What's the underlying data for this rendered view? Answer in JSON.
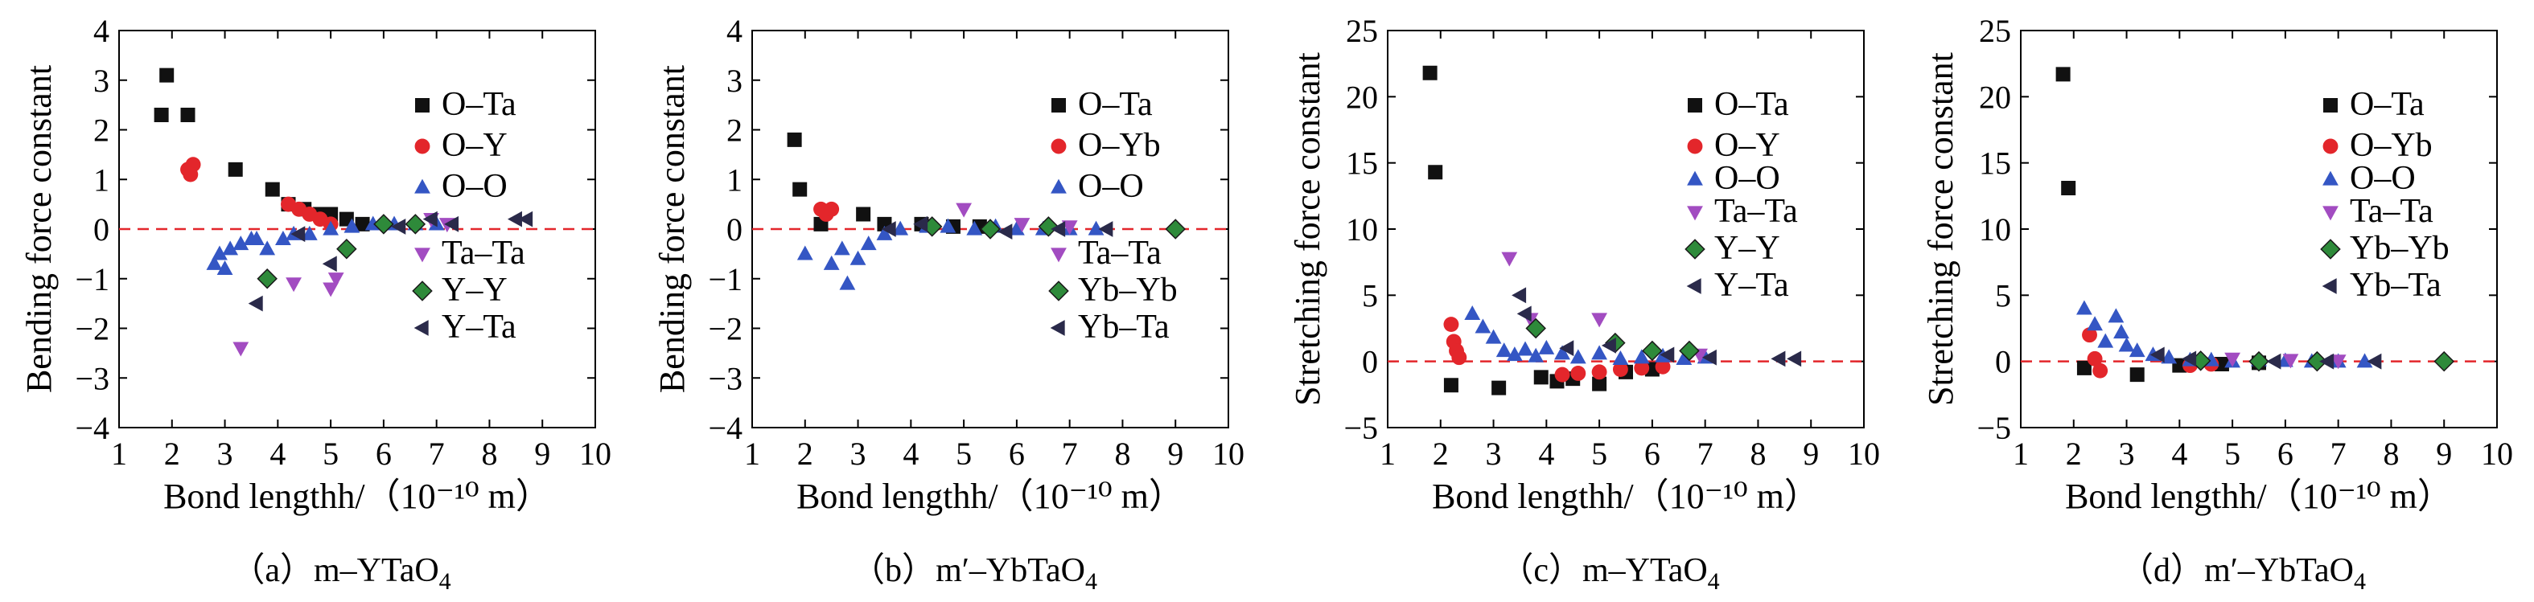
{
  "colors": {
    "O-Ta": "#111111",
    "O-Y": "#e3262b",
    "O-Yb": "#e3262b",
    "O-O": "#3456c4",
    "Ta-Ta": "#a24cc1",
    "Y-Y": "#2e8a3a",
    "Yb-Yb": "#2e8a3a",
    "Y-Ta": "#2a2a4a",
    "Yb-Ta": "#2a2a4a",
    "zero_line": "#e3262b"
  },
  "chart_data": [
    {
      "type": "scatter",
      "caption": {
        "prefix": "（a）",
        "material": "m–YTaO",
        "subscript": "4"
      },
      "xlabel": "Bond lengthh/（10⁻¹⁰ m）",
      "ylabel": "Bending force constant",
      "xlim": [
        1,
        10
      ],
      "ylim": [
        -4,
        4
      ],
      "x_ticks": [
        "1",
        "2",
        "3",
        "4",
        "5",
        "6",
        "7",
        "8",
        "9",
        "10"
      ],
      "y_ticks": [
        "4",
        "3",
        "2",
        "1",
        "0",
        "−1",
        "−2",
        "−3",
        "−4"
      ],
      "legend": [
        {
          "label": "O–Ta",
          "marker": "square"
        },
        {
          "label": "O–Y",
          "marker": "circle"
        },
        {
          "label": "O–O",
          "marker": "triangle-up"
        },
        {
          "label": "Ta–Ta",
          "marker": "triangle-down"
        },
        {
          "label": "Y–Y",
          "marker": "diamond"
        },
        {
          "label": "Y–Ta",
          "marker": "triangle-left"
        }
      ],
      "series": [
        {
          "name": "O–Ta",
          "points": [
            [
              1.8,
              2.3
            ],
            [
              1.9,
              3.1
            ],
            [
              2.3,
              2.3
            ],
            [
              3.2,
              1.2
            ],
            [
              3.9,
              0.8
            ],
            [
              4.2,
              0.5
            ],
            [
              4.5,
              0.4
            ],
            [
              4.8,
              0.3
            ],
            [
              5.0,
              0.3
            ],
            [
              5.3,
              0.2
            ],
            [
              5.6,
              0.1
            ]
          ]
        },
        {
          "name": "O–Y",
          "points": [
            [
              2.3,
              1.2
            ],
            [
              2.4,
              1.3
            ],
            [
              2.35,
              1.1
            ],
            [
              4.2,
              0.5
            ],
            [
              4.4,
              0.4
            ],
            [
              4.6,
              0.3
            ],
            [
              4.8,
              0.2
            ],
            [
              5.0,
              0.1
            ]
          ]
        },
        {
          "name": "O–O",
          "points": [
            [
              2.8,
              -0.7
            ],
            [
              2.9,
              -0.5
            ],
            [
              3.0,
              -0.8
            ],
            [
              3.1,
              -0.4
            ],
            [
              3.3,
              -0.3
            ],
            [
              3.5,
              -0.2
            ],
            [
              3.6,
              -0.2
            ],
            [
              3.8,
              -0.4
            ],
            [
              4.1,
              -0.2
            ],
            [
              4.3,
              -0.1
            ],
            [
              4.6,
              -0.1
            ],
            [
              5.0,
              0.0
            ],
            [
              5.4,
              0.05
            ],
            [
              5.8,
              0.1
            ],
            [
              6.2,
              0.1
            ],
            [
              6.6,
              0.1
            ],
            [
              7.0,
              0.1
            ]
          ]
        },
        {
          "name": "Ta–Ta",
          "points": [
            [
              3.3,
              -2.4
            ],
            [
              4.3,
              -1.1
            ],
            [
              5.0,
              -1.2
            ],
            [
              5.1,
              -1.0
            ],
            [
              6.9,
              0.2
            ],
            [
              7.2,
              0.1
            ]
          ]
        },
        {
          "name": "Y–Y",
          "points": [
            [
              3.8,
              -1.0
            ],
            [
              5.3,
              -0.4
            ],
            [
              6.0,
              0.1
            ],
            [
              6.6,
              0.1
            ]
          ]
        },
        {
          "name": "Y–Ta",
          "points": [
            [
              3.6,
              -1.5
            ],
            [
              4.4,
              -0.1
            ],
            [
              5.0,
              -0.7
            ],
            [
              6.3,
              0.05
            ],
            [
              6.9,
              0.2
            ],
            [
              7.3,
              0.1
            ],
            [
              8.5,
              0.2
            ],
            [
              8.7,
              0.2
            ]
          ]
        }
      ]
    },
    {
      "type": "scatter",
      "caption": {
        "prefix": "（b）",
        "material": "m′–YbTaO",
        "subscript": "4"
      },
      "xlabel": "Bond lengthh/（10⁻¹⁰ m）",
      "ylabel": "Bending force constant",
      "xlim": [
        1,
        10
      ],
      "ylim": [
        -4,
        4
      ],
      "x_ticks": [
        "1",
        "2",
        "3",
        "4",
        "5",
        "6",
        "7",
        "8",
        "9",
        "10"
      ],
      "y_ticks": [
        "4",
        "3",
        "2",
        "1",
        "0",
        "−1",
        "−2",
        "−3",
        "−4"
      ],
      "legend": [
        {
          "label": "O–Ta",
          "marker": "square"
        },
        {
          "label": "O–Yb",
          "marker": "circle"
        },
        {
          "label": "O–O",
          "marker": "triangle-up"
        },
        {
          "label": "Ta–Ta",
          "marker": "triangle-down"
        },
        {
          "label": "Yb–Yb",
          "marker": "diamond"
        },
        {
          "label": "Yb–Ta",
          "marker": "triangle-left"
        }
      ],
      "series": [
        {
          "name": "O–Ta",
          "points": [
            [
              1.8,
              1.8
            ],
            [
              1.9,
              0.8
            ],
            [
              2.3,
              0.1
            ],
            [
              3.1,
              0.3
            ],
            [
              3.5,
              0.1
            ],
            [
              4.2,
              0.1
            ],
            [
              4.8,
              0.05
            ],
            [
              5.3,
              0.05
            ]
          ]
        },
        {
          "name": "O–Yb",
          "points": [
            [
              2.3,
              0.4
            ],
            [
              2.4,
              0.3
            ],
            [
              2.5,
              0.4
            ]
          ]
        },
        {
          "name": "O–O",
          "points": [
            [
              2.0,
              -0.5
            ],
            [
              2.5,
              -0.7
            ],
            [
              2.7,
              -0.4
            ],
            [
              2.8,
              -1.1
            ],
            [
              3.0,
              -0.6
            ],
            [
              3.2,
              -0.3
            ],
            [
              3.5,
              -0.1
            ],
            [
              3.8,
              0.0
            ],
            [
              4.3,
              0.05
            ],
            [
              4.7,
              0.05
            ],
            [
              5.2,
              0.0
            ],
            [
              5.6,
              0.05
            ],
            [
              6.0,
              0.0
            ],
            [
              6.5,
              0.0
            ],
            [
              7.0,
              0.0
            ],
            [
              7.5,
              0.0
            ]
          ]
        },
        {
          "name": "Ta–Ta",
          "points": [
            [
              5.0,
              0.4
            ],
            [
              6.1,
              0.1
            ],
            [
              7.0,
              0.05
            ]
          ]
        },
        {
          "name": "Yb–Yb",
          "points": [
            [
              4.4,
              0.05
            ],
            [
              5.5,
              0.0
            ],
            [
              6.6,
              0.05
            ],
            [
              9.0,
              0.0
            ]
          ]
        },
        {
          "name": "Yb–Ta",
          "points": [
            [
              3.6,
              0.0
            ],
            [
              4.2,
              0.1
            ],
            [
              5.8,
              -0.05
            ],
            [
              6.8,
              0.0
            ],
            [
              7.7,
              0.0
            ]
          ]
        }
      ]
    },
    {
      "type": "scatter",
      "caption": {
        "prefix": "（c）",
        "material": "m–YTaO",
        "subscript": "4"
      },
      "xlabel": "Bond lengthh/（10⁻¹⁰ m）",
      "ylabel": "Stretching force constant",
      "xlim": [
        1,
        10
      ],
      "ylim": [
        -5,
        25
      ],
      "x_ticks": [
        "1",
        "2",
        "3",
        "4",
        "5",
        "6",
        "7",
        "8",
        "9",
        "10"
      ],
      "y_ticks": [
        "25",
        "20",
        "15",
        "10",
        "5",
        "0",
        "−5"
      ],
      "legend": [
        {
          "label": "O–Ta",
          "marker": "square"
        },
        {
          "label": "O–Y",
          "marker": "circle"
        },
        {
          "label": "O–O",
          "marker": "triangle-up"
        },
        {
          "label": "Ta–Ta",
          "marker": "triangle-down"
        },
        {
          "label": "Y–Y",
          "marker": "diamond"
        },
        {
          "label": "Y–Ta",
          "marker": "triangle-left"
        }
      ],
      "series": [
        {
          "name": "O–Ta",
          "points": [
            [
              1.8,
              21.8
            ],
            [
              1.9,
              14.3
            ],
            [
              2.2,
              -1.8
            ],
            [
              3.1,
              -2.0
            ],
            [
              3.9,
              -1.2
            ],
            [
              4.2,
              -1.5
            ],
            [
              4.5,
              -1.3
            ],
            [
              5.0,
              -1.7
            ],
            [
              5.5,
              -0.8
            ],
            [
              6.0,
              -0.6
            ]
          ]
        },
        {
          "name": "O–Y",
          "points": [
            [
              2.2,
              2.8
            ],
            [
              2.25,
              1.5
            ],
            [
              2.3,
              0.8
            ],
            [
              2.35,
              0.3
            ],
            [
              4.3,
              -1.0
            ],
            [
              4.6,
              -0.9
            ],
            [
              5.0,
              -0.8
            ],
            [
              5.4,
              -0.6
            ],
            [
              5.8,
              -0.5
            ],
            [
              6.2,
              -0.4
            ]
          ]
        },
        {
          "name": "O–O",
          "points": [
            [
              2.6,
              3.6
            ],
            [
              2.8,
              2.6
            ],
            [
              3.0,
              1.8
            ],
            [
              3.2,
              0.8
            ],
            [
              3.4,
              0.5
            ],
            [
              3.6,
              0.9
            ],
            [
              3.8,
              0.4
            ],
            [
              4.0,
              1.0
            ],
            [
              4.3,
              0.6
            ],
            [
              4.6,
              0.3
            ],
            [
              5.0,
              0.6
            ],
            [
              5.4,
              0.2
            ],
            [
              5.8,
              0.3
            ],
            [
              6.2,
              0.4
            ],
            [
              6.6,
              0.2
            ],
            [
              7.0,
              0.3
            ]
          ]
        },
        {
          "name": "Ta–Ta",
          "points": [
            [
              3.3,
              7.8
            ],
            [
              3.7,
              3.2
            ],
            [
              5.0,
              3.2
            ],
            [
              6.9,
              0.5
            ]
          ]
        },
        {
          "name": "Y–Y",
          "points": [
            [
              3.8,
              2.5
            ],
            [
              5.3,
              1.4
            ],
            [
              6.0,
              0.8
            ],
            [
              6.7,
              0.8
            ]
          ]
        },
        {
          "name": "Y–Ta",
          "points": [
            [
              3.6,
              3.6
            ],
            [
              3.5,
              5.0
            ],
            [
              4.4,
              1.0
            ],
            [
              5.2,
              1.2
            ],
            [
              6.3,
              0.5
            ],
            [
              7.1,
              0.3
            ],
            [
              8.4,
              0.2
            ],
            [
              8.7,
              0.2
            ]
          ]
        }
      ]
    },
    {
      "type": "scatter",
      "caption": {
        "prefix": "（d）",
        "material": "m′–YbTaO",
        "subscript": "4"
      },
      "xlabel": "Bond lengthh/（10⁻¹⁰ m）",
      "ylabel": "Stretching force constant",
      "xlim": [
        1,
        10
      ],
      "ylim": [
        -5,
        25
      ],
      "x_ticks": [
        "1",
        "2",
        "3",
        "4",
        "5",
        "6",
        "7",
        "8",
        "9",
        "10"
      ],
      "y_ticks": [
        "25",
        "20",
        "15",
        "10",
        "5",
        "0",
        "−5"
      ],
      "legend": [
        {
          "label": "O–Ta",
          "marker": "square"
        },
        {
          "label": "O–Yb",
          "marker": "circle"
        },
        {
          "label": "O–O",
          "marker": "triangle-up"
        },
        {
          "label": "Ta–Ta",
          "marker": "triangle-down"
        },
        {
          "label": "Yb–Yb",
          "marker": "diamond"
        },
        {
          "label": "Yb–Ta",
          "marker": "triangle-left"
        }
      ],
      "series": [
        {
          "name": "O–Ta",
          "points": [
            [
              1.8,
              21.7
            ],
            [
              1.9,
              13.1
            ],
            [
              2.2,
              -0.5
            ],
            [
              3.2,
              -1.0
            ],
            [
              4.0,
              -0.3
            ],
            [
              4.8,
              -0.2
            ],
            [
              5.5,
              -0.1
            ]
          ]
        },
        {
          "name": "O–Yb",
          "points": [
            [
              2.3,
              2.0
            ],
            [
              2.4,
              0.2
            ],
            [
              2.5,
              -0.7
            ],
            [
              4.2,
              -0.3
            ],
            [
              4.6,
              -0.2
            ]
          ]
        },
        {
          "name": "O–O",
          "points": [
            [
              2.2,
              4.0
            ],
            [
              2.4,
              2.8
            ],
            [
              2.6,
              1.5
            ],
            [
              2.8,
              3.4
            ],
            [
              2.9,
              2.2
            ],
            [
              3.0,
              1.2
            ],
            [
              3.2,
              0.8
            ],
            [
              3.5,
              0.5
            ],
            [
              3.8,
              0.3
            ],
            [
              4.2,
              0.1
            ],
            [
              4.6,
              0.1
            ],
            [
              5.0,
              0.0
            ],
            [
              5.5,
              0.1
            ],
            [
              6.0,
              0.05
            ],
            [
              6.5,
              0.0
            ],
            [
              7.0,
              0.0
            ],
            [
              7.5,
              0.0
            ]
          ]
        },
        {
          "name": "Ta–Ta",
          "points": [
            [
              5.0,
              0.2
            ],
            [
              6.1,
              0.1
            ],
            [
              7.0,
              0.05
            ]
          ]
        },
        {
          "name": "Yb–Yb",
          "points": [
            [
              4.4,
              0.05
            ],
            [
              5.5,
              0.0
            ],
            [
              6.6,
              0.0
            ],
            [
              9.0,
              0.0
            ]
          ]
        },
        {
          "name": "Yb–Ta",
          "points": [
            [
              3.6,
              0.5
            ],
            [
              4.2,
              0.2
            ],
            [
              5.8,
              0.0
            ],
            [
              6.8,
              0.0
            ],
            [
              7.7,
              0.0
            ]
          ]
        }
      ]
    }
  ]
}
